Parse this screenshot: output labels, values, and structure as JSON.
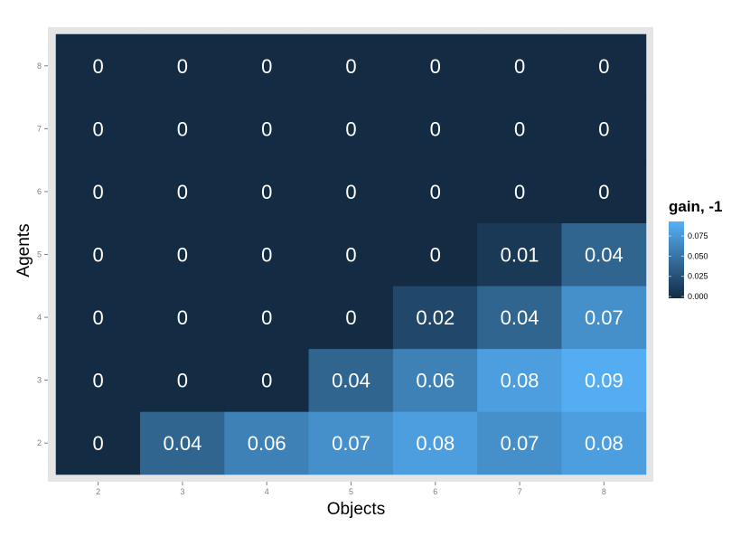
{
  "chart_data": {
    "type": "heatmap",
    "title": "",
    "xlabel": "Objects",
    "ylabel": "Agents",
    "x_categories": [
      "2",
      "3",
      "4",
      "5",
      "6",
      "7",
      "8"
    ],
    "y_categories": [
      "2",
      "3",
      "4",
      "5",
      "6",
      "7",
      "8"
    ],
    "values": {
      "8": [
        0,
        0,
        0,
        0,
        0,
        0,
        0
      ],
      "7": [
        0,
        0,
        0,
        0,
        0,
        0,
        0
      ],
      "6": [
        0,
        0,
        0,
        0,
        0,
        0,
        0
      ],
      "5": [
        0,
        0,
        0,
        0,
        0,
        0.01,
        0.04
      ],
      "4": [
        0,
        0,
        0,
        0,
        0.02,
        0.04,
        0.07
      ],
      "3": [
        0,
        0,
        0,
        0.04,
        0.06,
        0.08,
        0.09
      ],
      "2": [
        0,
        0.04,
        0.06,
        0.07,
        0.08,
        0.07,
        0.08
      ]
    },
    "legend": {
      "title": "gain, -1",
      "ticks": [
        "0.000",
        "0.025",
        "0.050",
        "0.075"
      ],
      "tick_values": [
        0,
        0.025,
        0.05,
        0.075
      ],
      "range": [
        0,
        0.093
      ],
      "placement": "right"
    },
    "colors": {
      "low": "#132B43",
      "high": "#56B1F7",
      "panel": "#E5E5E5",
      "label": "#FFFFFF"
    }
  }
}
